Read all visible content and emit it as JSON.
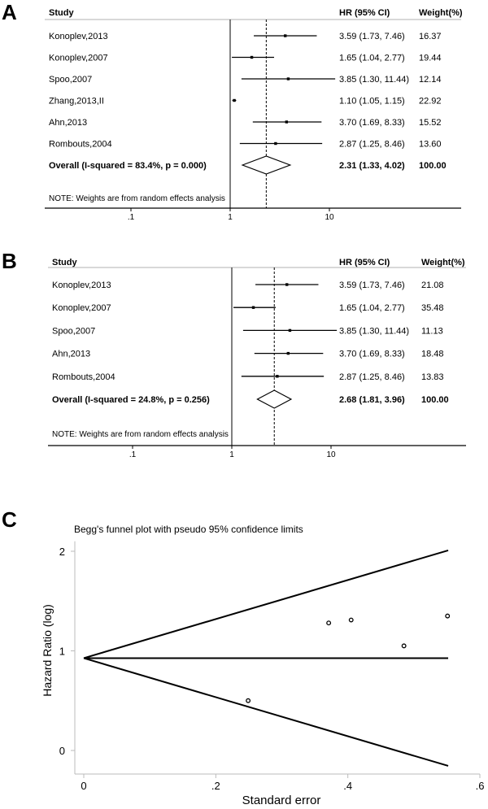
{
  "chart_data": [
    {
      "type": "forest",
      "panel_label": "A",
      "headers": {
        "study": "Study",
        "hr": "HR (95% CI)",
        "weight": "Weight(%)"
      },
      "x_scale": "log",
      "x_ticks": [
        {
          "value": 0.1,
          "label": ".1"
        },
        {
          "value": 1,
          "label": "1"
        },
        {
          "value": 10,
          "label": "10"
        }
      ],
      "studies": [
        {
          "name": "Konoplev,2013",
          "hr": 3.59,
          "lo": 1.73,
          "hi": 7.46,
          "hr_text": "3.59 (1.73, 7.46)",
          "weight": "16.37"
        },
        {
          "name": "Konoplev,2007",
          "hr": 1.65,
          "lo": 1.04,
          "hi": 2.77,
          "hr_text": "1.65 (1.04, 2.77)",
          "weight": "19.44"
        },
        {
          "name": "Spoo,2007",
          "hr": 3.85,
          "lo": 1.3,
          "hi": 11.44,
          "hr_text": "3.85 (1.30, 11.44)",
          "weight": "12.14"
        },
        {
          "name": "Zhang,2013,II",
          "hr": 1.1,
          "lo": 1.05,
          "hi": 1.15,
          "hr_text": "1.10 (1.05, 1.15)",
          "weight": "22.92"
        },
        {
          "name": "Ahn,2013",
          "hr": 3.7,
          "lo": 1.69,
          "hi": 8.33,
          "hr_text": "3.70 (1.69, 8.33)",
          "weight": "15.52"
        },
        {
          "name": "Rombouts,2004",
          "hr": 2.87,
          "lo": 1.25,
          "hi": 8.46,
          "hr_text": "2.87 (1.25, 8.46)",
          "weight": "13.60"
        }
      ],
      "overall": {
        "label": "Overall  (I-squared = 83.4%, p = 0.000)",
        "hr": 2.31,
        "lo": 1.33,
        "hi": 4.02,
        "hr_text": "2.31 (1.33, 4.02)",
        "weight": "100.00"
      },
      "note": "NOTE: Weights are from random effects analysis"
    },
    {
      "type": "forest",
      "panel_label": "B",
      "headers": {
        "study": "Study",
        "hr": "HR (95% CI)",
        "weight": "Weight(%)"
      },
      "x_scale": "log",
      "x_ticks": [
        {
          "value": 0.1,
          "label": ".1"
        },
        {
          "value": 1,
          "label": "1"
        },
        {
          "value": 10,
          "label": "10"
        }
      ],
      "studies": [
        {
          "name": "Konoplev,2013",
          "hr": 3.59,
          "lo": 1.73,
          "hi": 7.46,
          "hr_text": "3.59 (1.73, 7.46)",
          "weight": "21.08"
        },
        {
          "name": "Konoplev,2007",
          "hr": 1.65,
          "lo": 1.04,
          "hi": 2.77,
          "hr_text": "1.65 (1.04, 2.77)",
          "weight": "35.48"
        },
        {
          "name": "Spoo,2007",
          "hr": 3.85,
          "lo": 1.3,
          "hi": 11.44,
          "hr_text": "3.85 (1.30, 11.44)",
          "weight": "11.13"
        },
        {
          "name": "Ahn,2013",
          "hr": 3.7,
          "lo": 1.69,
          "hi": 8.33,
          "hr_text": "3.70 (1.69, 8.33)",
          "weight": "18.48"
        },
        {
          "name": "Rombouts,2004",
          "hr": 2.87,
          "lo": 1.25,
          "hi": 8.46,
          "hr_text": "2.87 (1.25, 8.46)",
          "weight": "13.83"
        }
      ],
      "overall": {
        "label": "Overall  (I-squared = 24.8%, p = 0.256)",
        "hr": 2.68,
        "lo": 1.81,
        "hi": 3.96,
        "hr_text": "2.68 (1.81, 3.96)",
        "weight": "100.00"
      },
      "note": "NOTE: Weights are from random effects analysis"
    },
    {
      "type": "scatter",
      "panel_label": "C",
      "title": "Begg's funnel plot with pseudo 95% confidence limits",
      "xlabel": "Standard error",
      "ylabel": "Hazard Ratio (log)",
      "xlim": [
        0,
        0.6
      ],
      "ylim": [
        -0.25,
        2.1
      ],
      "x_ticks": [
        {
          "value": 0,
          "label": "0"
        },
        {
          "value": 0.2,
          "label": ".2"
        },
        {
          "value": 0.4,
          "label": ".4"
        },
        {
          "value": 0.6,
          "label": ".6"
        }
      ],
      "y_ticks": [
        {
          "value": 0,
          "label": "0"
        },
        {
          "value": 1,
          "label": "1"
        },
        {
          "value": 2,
          "label": "2"
        }
      ],
      "points": [
        {
          "x": 0.249,
          "y": 0.5
        },
        {
          "x": 0.371,
          "y": 1.28
        },
        {
          "x": 0.405,
          "y": 1.31
        },
        {
          "x": 0.485,
          "y": 1.05
        },
        {
          "x": 0.551,
          "y": 1.35
        }
      ],
      "pooled_estimate": 0.927,
      "funnel_max_se": 0.552,
      "funnel_z": 1.96
    }
  ]
}
